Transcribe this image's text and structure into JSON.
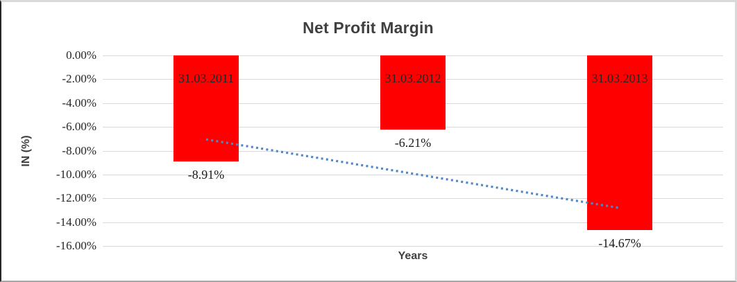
{
  "chart_data": {
    "type": "bar",
    "title": "Net Profit Margin",
    "xlabel": "Years",
    "ylabel": "IN (%)",
    "categories": [
      "31.03.2011",
      "31.03.2012",
      "31.03.2013"
    ],
    "values": [
      -8.91,
      -6.21,
      -14.67
    ],
    "value_labels": [
      "-8.91%",
      "-6.21%",
      "-14.67%"
    ],
    "ylim": [
      -16,
      0
    ],
    "y_ticks": [
      "0.00%",
      "-2.00%",
      "-4.00%",
      "-6.00%",
      "-8.00%",
      "-10.00%",
      "-12.00%",
      "-14.00%",
      "-16.00%"
    ],
    "y_tick_values": [
      0,
      -2,
      -4,
      -6,
      -8,
      -10,
      -12,
      -14,
      -16
    ],
    "grid": true,
    "legend_position": "none",
    "bar_label_position": "inside-top",
    "trendline": {
      "type": "linear",
      "style": "dotted",
      "start_value": -7.05,
      "end_value": -12.81
    },
    "colors": {
      "bar": "#FF0000",
      "trendline": "#4F87C7",
      "gridline": "#D9D9D9",
      "title": "#404040",
      "tick_label": "#262626",
      "bar_category_label": "#262626",
      "value_label": "#1A1A1A"
    }
  }
}
